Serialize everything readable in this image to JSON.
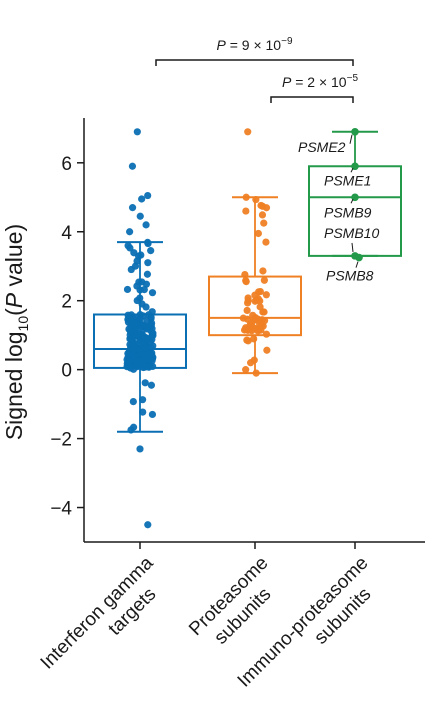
{
  "chart_data": {
    "type": "box",
    "ylabel_parts": [
      "Signed log",
      "10",
      "(",
      "P",
      " value)"
    ],
    "ylim": [
      -5.0,
      7.3
    ],
    "yticks": [
      -4,
      -2,
      0,
      2,
      4,
      6
    ],
    "ytick_labels": [
      "−4",
      "−2",
      "0",
      "2",
      "4",
      "6"
    ],
    "grid": false,
    "categories": [
      {
        "lines": [
          "Interferon gamma",
          "targets"
        ],
        "color": "#0a6fb3",
        "box": {
          "whislo": -1.8,
          "q1": 0.05,
          "med": 0.6,
          "q3": 1.6,
          "whishi": 3.7
        },
        "extra_points": [
          6.9,
          5.9,
          5.05,
          4.95,
          4.7,
          4.45,
          4.2,
          4.0,
          -2.3,
          -4.5,
          -1.75,
          -1.3
        ]
      },
      {
        "lines": [
          "Proteasome",
          "subunits"
        ],
        "color": "#ef8024",
        "box": {
          "whislo": -0.1,
          "q1": 1.0,
          "med": 1.5,
          "q3": 2.7,
          "whishi": 5.0
        },
        "extra_points": [
          6.9,
          5.0,
          4.6,
          4.25,
          3.95,
          3.7,
          -0.1,
          0.0
        ]
      },
      {
        "lines": [
          "Immuno-proteasome",
          "subunits"
        ],
        "color": "#23994a",
        "box": {
          "whislo": 3.3,
          "q1": 3.3,
          "med": 5.0,
          "q3": 5.9,
          "whishi": 6.9
        },
        "labelled_points": [
          {
            "gene": "PSME2",
            "value": 6.9
          },
          {
            "gene": "PSME1",
            "value": 5.9
          },
          {
            "gene": "PSMB9",
            "value": 5.0
          },
          {
            "gene": "PSMB10",
            "value": 3.3
          },
          {
            "gene": "PSMB8",
            "value": 3.25
          }
        ]
      }
    ],
    "significance": [
      {
        "from": 0,
        "to": 2,
        "label": "P = 9 × 10",
        "exponent": "−9"
      },
      {
        "from": 1,
        "to": 2,
        "label": "P = 2 × 10",
        "exponent": "−5"
      }
    ]
  }
}
